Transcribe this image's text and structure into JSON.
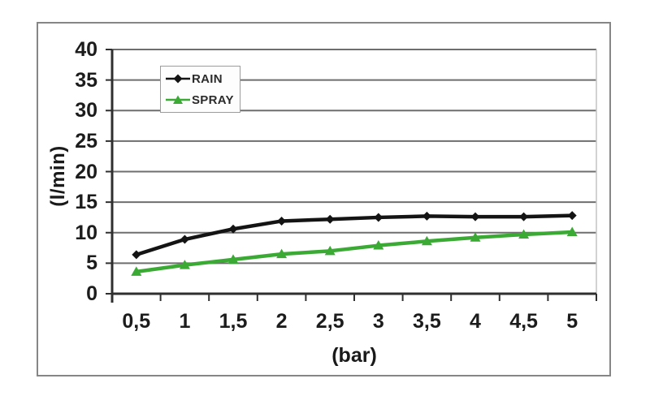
{
  "chart_data": {
    "type": "line",
    "title": "",
    "xlabel": "(bar)",
    "ylabel": "(l/min)",
    "categories": [
      "0,5",
      "1",
      "1,5",
      "2",
      "2,5",
      "3",
      "3,5",
      "4",
      "4,5",
      "5"
    ],
    "x_values": [
      0.5,
      1,
      1.5,
      2,
      2.5,
      3,
      3.5,
      4,
      4.5,
      5
    ],
    "series": [
      {
        "name": "RAIN",
        "color": "#141414",
        "marker": "diamond",
        "values": [
          6.4,
          8.9,
          10.6,
          11.9,
          12.2,
          12.5,
          12.7,
          12.6,
          12.6,
          12.8
        ]
      },
      {
        "name": "SPRAY",
        "color": "#3aaa35",
        "marker": "triangle",
        "values": [
          3.6,
          4.7,
          5.6,
          6.5,
          7.0,
          7.9,
          8.6,
          9.2,
          9.7,
          10.1
        ]
      }
    ],
    "ylim": [
      0,
      40
    ],
    "y_ticks": [
      0,
      5,
      10,
      15,
      20,
      25,
      30,
      35,
      40
    ],
    "grid": "horizontal",
    "legend_position": "inside-top-left"
  },
  "colors": {
    "grid": "#6e6e6e",
    "axis": "#2f2f2f",
    "plot_right_border": "#c4c4c4",
    "frame_border": "#868686",
    "background": "#ffffff",
    "text": "#1c1c1c"
  }
}
